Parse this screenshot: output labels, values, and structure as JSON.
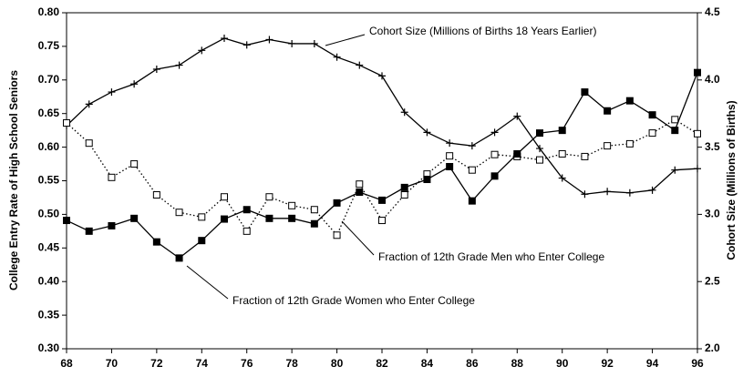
{
  "chart_data": {
    "type": "line",
    "y_label": "College Entry Rate of High School Seniors",
    "y2_label": "Cohort Size (Millions of Births)",
    "x": [
      68,
      69,
      70,
      71,
      72,
      73,
      74,
      75,
      76,
      77,
      78,
      79,
      80,
      81,
      82,
      83,
      84,
      85,
      86,
      87,
      88,
      89,
      90,
      91,
      92,
      93,
      94,
      95,
      96
    ],
    "xlim": [
      68,
      96
    ],
    "xticks": [
      68,
      70,
      72,
      74,
      76,
      78,
      80,
      82,
      84,
      86,
      88,
      90,
      92,
      94,
      96
    ],
    "ylim": [
      0.3,
      0.8
    ],
    "yticks": [
      {
        "value": 0.3,
        "label": "0.30"
      },
      0.35,
      {
        "value": 0.4,
        "label": "0.40"
      },
      0.45,
      {
        "value": 0.5,
        "label": "0.50"
      },
      0.55,
      {
        "value": 0.6,
        "label": "0.60"
      },
      0.65,
      {
        "value": 0.7,
        "label": "0.70"
      },
      0.75,
      {
        "value": 0.8,
        "label": "0.80"
      }
    ],
    "y2lim": [
      2.0,
      4.5
    ],
    "y2ticks": [
      {
        "value": 2.0,
        "label": "2.0"
      },
      2.5,
      {
        "value": 3.0,
        "label": "3.0"
      },
      3.5,
      {
        "value": 4.0,
        "label": "4.0"
      },
      4.5
    ],
    "series": [
      {
        "name": "Cohort Size (Millions of Births 18 Years Earlier)",
        "color": "#000000",
        "axis": "y2",
        "marker": "plus",
        "dash": "solid",
        "values": [
          3.66,
          3.82,
          3.91,
          3.97,
          4.08,
          4.11,
          4.22,
          4.31,
          4.26,
          4.3,
          4.27,
          4.27,
          4.17,
          4.11,
          4.03,
          3.76,
          3.61,
          3.53,
          3.51,
          3.61,
          3.73,
          3.49,
          3.27,
          3.15,
          3.17,
          3.16,
          3.18,
          3.33,
          3.34
        ]
      },
      {
        "name": "Fraction of 12th Grade Men who Enter College",
        "color": "#000000",
        "axis": "y",
        "marker": "square-open",
        "dash": "dotted",
        "values": [
          0.636,
          0.606,
          0.555,
          0.575,
          0.529,
          0.503,
          0.496,
          0.526,
          0.475,
          0.526,
          0.513,
          0.507,
          0.469,
          0.545,
          0.491,
          0.529,
          0.56,
          0.587,
          0.566,
          0.589,
          0.586,
          0.581,
          0.59,
          0.586,
          0.602,
          0.605,
          0.621,
          0.641,
          0.62
        ]
      },
      {
        "name": "Fraction of 12th Grade Women who Enter College",
        "color": "#000000",
        "axis": "y",
        "marker": "square-filled",
        "dash": "solid",
        "values": [
          0.491,
          0.475,
          0.483,
          0.494,
          0.459,
          0.435,
          0.461,
          0.493,
          0.507,
          0.494,
          0.494,
          0.486,
          0.517,
          0.533,
          0.521,
          0.54,
          0.552,
          0.571,
          0.52,
          0.557,
          0.59,
          0.621,
          0.625,
          0.682,
          0.654,
          0.669,
          0.648,
          0.625,
          0.711
        ]
      }
    ]
  }
}
